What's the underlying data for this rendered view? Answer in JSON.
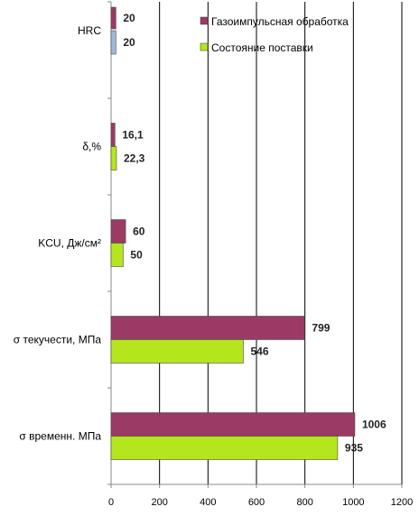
{
  "chart_data": {
    "type": "bar",
    "orientation": "horizontal",
    "categories": [
      "σ временн. МПа",
      "σ текучести, МПа",
      "KCU, Дж/см²",
      "δ,%",
      "HRC"
    ],
    "series": [
      {
        "name": "Газоимпульсная обработка",
        "color": "#9b3a63",
        "values": [
          1006,
          799,
          60,
          16.1,
          20
        ],
        "labels": [
          "1006",
          "799",
          "60",
          "16,1",
          "20"
        ]
      },
      {
        "name": "Состояние поставки",
        "color": "#b5e61d",
        "values": [
          935,
          546,
          50,
          22.3,
          20
        ],
        "labels": [
          "935",
          "546",
          "50",
          "22,3",
          "20"
        ]
      }
    ],
    "hrc_second_bar_color": "#9db8d9",
    "xticks": [
      "0",
      "200",
      "400",
      "600",
      "800",
      "1000",
      "1200"
    ],
    "xlim": [
      0,
      1200
    ],
    "grid": "vertical lines at major ticks",
    "legend": "top-right"
  }
}
